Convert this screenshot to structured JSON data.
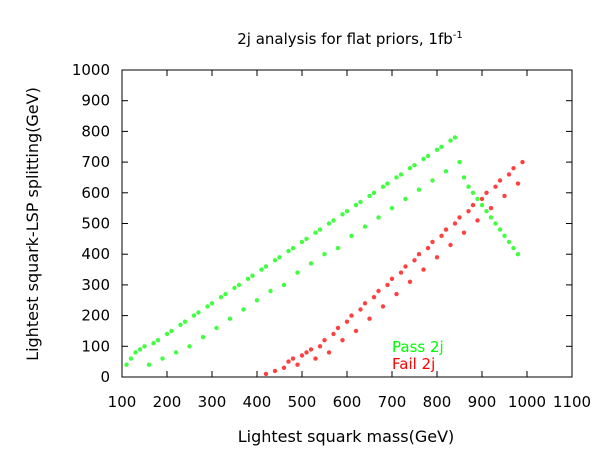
{
  "chart_data": {
    "type": "scatter",
    "title": "2j analysis for flat priors, 1fb",
    "title_superscript": "-1",
    "xlabel": "Lightest squark mass(GeV)",
    "ylabel": "Lightest squark-LSP splitting(GeV)",
    "xlim": [
      100,
      1100
    ],
    "ylim": [
      0,
      1000
    ],
    "x_ticks": [
      100,
      200,
      300,
      400,
      500,
      600,
      700,
      800,
      900,
      1000,
      1100
    ],
    "y_ticks": [
      0,
      100,
      200,
      300,
      400,
      500,
      600,
      700,
      800,
      900,
      1000
    ],
    "grid": false,
    "legend_position": "inside-bottom-right",
    "series": [
      {
        "name": "Pass 2j",
        "color": "#00ff00",
        "points": [
          [
            110,
            40
          ],
          [
            120,
            60
          ],
          [
            130,
            80
          ],
          [
            140,
            90
          ],
          [
            150,
            100
          ],
          [
            160,
            40
          ],
          [
            170,
            110
          ],
          [
            180,
            120
          ],
          [
            190,
            60
          ],
          [
            200,
            140
          ],
          [
            210,
            150
          ],
          [
            220,
            80
          ],
          [
            230,
            170
          ],
          [
            240,
            180
          ],
          [
            250,
            100
          ],
          [
            260,
            200
          ],
          [
            270,
            210
          ],
          [
            280,
            130
          ],
          [
            290,
            230
          ],
          [
            300,
            240
          ],
          [
            310,
            160
          ],
          [
            320,
            260
          ],
          [
            330,
            270
          ],
          [
            340,
            190
          ],
          [
            350,
            290
          ],
          [
            360,
            300
          ],
          [
            370,
            220
          ],
          [
            380,
            320
          ],
          [
            390,
            330
          ],
          [
            400,
            250
          ],
          [
            410,
            350
          ],
          [
            420,
            360
          ],
          [
            430,
            280
          ],
          [
            440,
            380
          ],
          [
            450,
            390
          ],
          [
            460,
            300
          ],
          [
            470,
            410
          ],
          [
            480,
            420
          ],
          [
            490,
            340
          ],
          [
            500,
            440
          ],
          [
            510,
            450
          ],
          [
            520,
            370
          ],
          [
            530,
            470
          ],
          [
            540,
            480
          ],
          [
            550,
            400
          ],
          [
            560,
            500
          ],
          [
            570,
            510
          ],
          [
            580,
            420
          ],
          [
            590,
            530
          ],
          [
            600,
            540
          ],
          [
            610,
            460
          ],
          [
            620,
            560
          ],
          [
            630,
            570
          ],
          [
            640,
            490
          ],
          [
            650,
            590
          ],
          [
            660,
            600
          ],
          [
            670,
            520
          ],
          [
            680,
            620
          ],
          [
            690,
            630
          ],
          [
            700,
            550
          ],
          [
            710,
            650
          ],
          [
            720,
            660
          ],
          [
            730,
            580
          ],
          [
            740,
            680
          ],
          [
            750,
            690
          ],
          [
            760,
            610
          ],
          [
            770,
            710
          ],
          [
            780,
            720
          ],
          [
            790,
            640
          ],
          [
            800,
            740
          ],
          [
            810,
            750
          ],
          [
            820,
            670
          ],
          [
            830,
            770
          ],
          [
            840,
            780
          ],
          [
            850,
            700
          ],
          [
            860,
            650
          ],
          [
            870,
            620
          ],
          [
            880,
            600
          ],
          [
            890,
            580
          ],
          [
            900,
            560
          ],
          [
            910,
            540
          ],
          [
            920,
            520
          ],
          [
            930,
            500
          ],
          [
            940,
            480
          ],
          [
            950,
            460
          ],
          [
            960,
            440
          ],
          [
            970,
            420
          ],
          [
            980,
            400
          ]
        ]
      },
      {
        "name": "Fail 2j",
        "color": "#ff0000",
        "points": [
          [
            420,
            10
          ],
          [
            440,
            20
          ],
          [
            460,
            30
          ],
          [
            470,
            50
          ],
          [
            480,
            60
          ],
          [
            490,
            40
          ],
          [
            500,
            70
          ],
          [
            510,
            80
          ],
          [
            520,
            90
          ],
          [
            530,
            60
          ],
          [
            540,
            100
          ],
          [
            550,
            120
          ],
          [
            560,
            80
          ],
          [
            570,
            140
          ],
          [
            580,
            160
          ],
          [
            590,
            120
          ],
          [
            600,
            180
          ],
          [
            610,
            200
          ],
          [
            620,
            150
          ],
          [
            630,
            220
          ],
          [
            640,
            240
          ],
          [
            650,
            190
          ],
          [
            660,
            260
          ],
          [
            670,
            280
          ],
          [
            680,
            230
          ],
          [
            690,
            300
          ],
          [
            700,
            320
          ],
          [
            710,
            270
          ],
          [
            720,
            340
          ],
          [
            730,
            360
          ],
          [
            740,
            310
          ],
          [
            750,
            380
          ],
          [
            760,
            400
          ],
          [
            770,
            350
          ],
          [
            780,
            420
          ],
          [
            790,
            440
          ],
          [
            800,
            390
          ],
          [
            810,
            460
          ],
          [
            820,
            480
          ],
          [
            830,
            430
          ],
          [
            840,
            500
          ],
          [
            850,
            520
          ],
          [
            860,
            470
          ],
          [
            870,
            540
          ],
          [
            880,
            560
          ],
          [
            890,
            510
          ],
          [
            900,
            580
          ],
          [
            910,
            600
          ],
          [
            920,
            550
          ],
          [
            930,
            620
          ],
          [
            940,
            640
          ],
          [
            950,
            590
          ],
          [
            960,
            660
          ],
          [
            970,
            680
          ],
          [
            980,
            630
          ],
          [
            990,
            700
          ]
        ]
      }
    ]
  }
}
